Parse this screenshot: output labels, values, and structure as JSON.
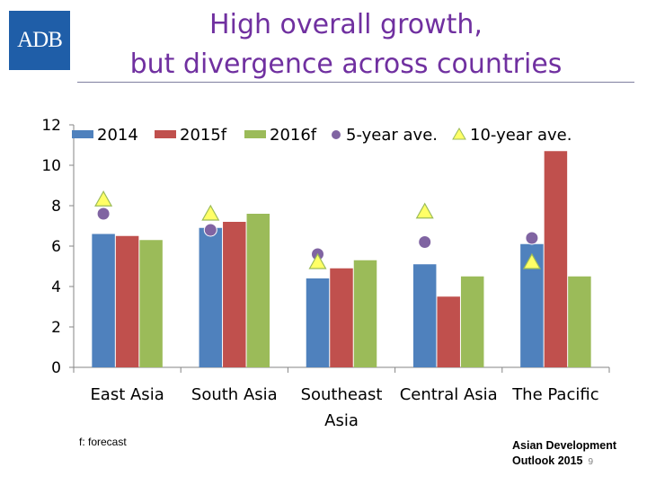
{
  "logo": {
    "text": "ADB",
    "color": "#1f5ea8"
  },
  "header": {
    "title_line1": "High overall growth,",
    "title_line2": "but divergence across countries"
  },
  "footer": {
    "note": "f: forecast",
    "source_line1": "Asian Development",
    "source_line2": "Outlook 2015",
    "page_number": "9"
  },
  "chart_data": {
    "type": "bar",
    "categories": [
      "East Asia",
      "South Asia",
      "Southeast Asia",
      "Central Asia",
      "The Pacific"
    ],
    "category_lines": [
      [
        "East Asia"
      ],
      [
        "South Asia"
      ],
      [
        "Southeast",
        "Asia"
      ],
      [
        "Central Asia"
      ],
      [
        "The Pacific"
      ]
    ],
    "series": [
      {
        "name": "2014",
        "values": [
          6.6,
          6.9,
          4.4,
          5.1,
          6.1
        ],
        "color": "#4f81bd"
      },
      {
        "name": "2015f",
        "values": [
          6.5,
          7.2,
          4.9,
          3.5,
          10.7
        ],
        "color": "#c0504d"
      },
      {
        "name": "2016f",
        "values": [
          6.3,
          7.6,
          5.3,
          4.5,
          4.5
        ],
        "color": "#9bbb59"
      }
    ],
    "markers": [
      {
        "name": "5-year ave.",
        "shape": "circle",
        "values": [
          7.6,
          6.8,
          5.6,
          6.2,
          6.4
        ],
        "color": "#8064a2"
      },
      {
        "name": "10-year ave.",
        "shape": "triangle",
        "values": [
          8.3,
          7.6,
          5.2,
          7.7,
          5.2
        ],
        "color": "#ffff66"
      }
    ],
    "ylim": [
      0,
      12
    ],
    "yticks": [
      "0",
      "2",
      "4",
      "6",
      "8",
      "10",
      "12"
    ],
    "xlabel": "",
    "ylabel": "",
    "grid": false,
    "legend_position": "top"
  }
}
